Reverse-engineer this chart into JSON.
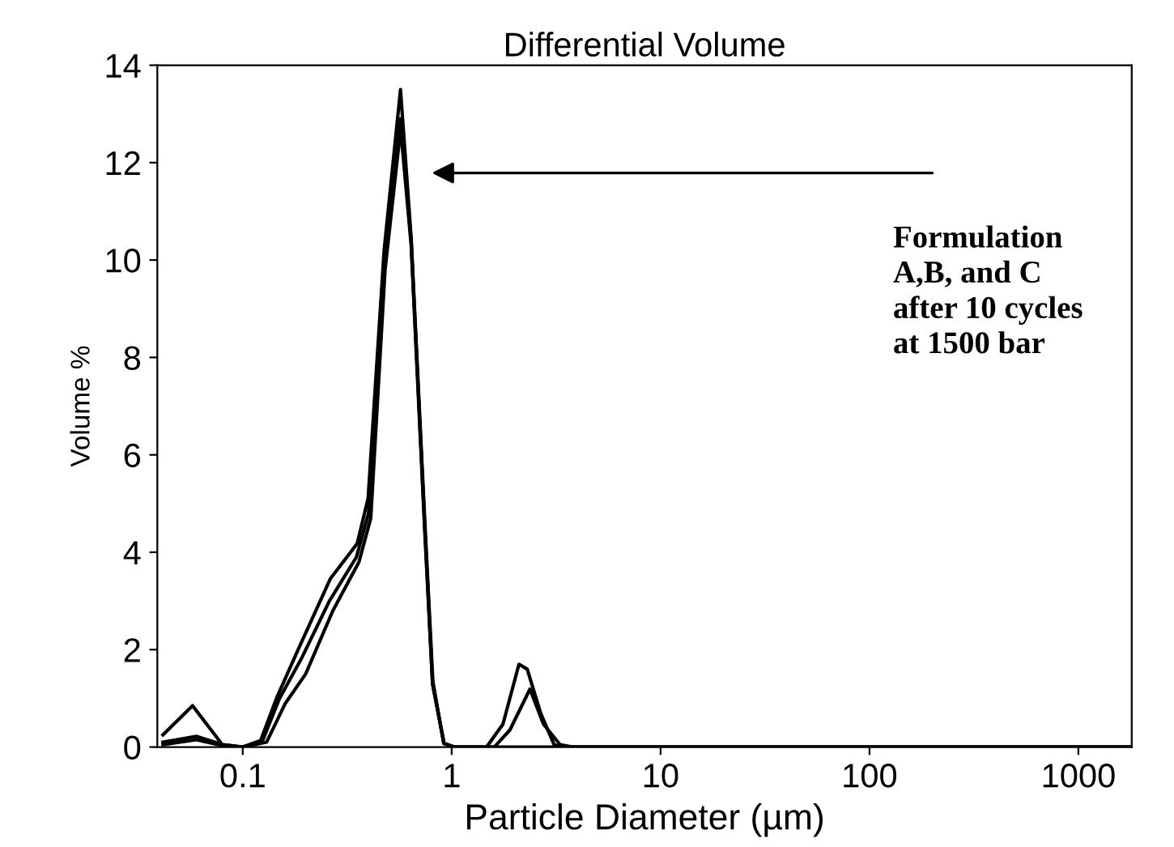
{
  "chart_data": {
    "type": "line",
    "title": "Differential Volume",
    "xlabel": "Particle Diameter (µm)",
    "ylabel": "Volume %",
    "log": "x",
    "xlim": [
      0.039,
      1800
    ],
    "xticks": [
      0.1,
      1,
      10,
      100,
      1000
    ],
    "ylim": [
      0,
      14
    ],
    "yticks": [
      0,
      2,
      4,
      6,
      8,
      10,
      12,
      14
    ],
    "grid": false,
    "legend": false,
    "marker": "none",
    "line_style": "solid",
    "series": [
      {
        "color": "#000000",
        "x": [
          0.0415,
          0.0575,
          0.0798,
          0.1,
          0.121,
          0.145,
          0.184,
          0.263,
          0.353,
          0.398,
          0.475,
          0.569,
          0.64,
          0.743,
          0.813,
          0.915,
          1.03,
          1.47,
          1.76,
          2.1,
          2.3,
          2.67,
          3.1,
          3.6,
          1800
        ],
        "values": [
          0.25,
          0.85,
          0.05,
          0,
          0.1,
          1.0,
          2.0,
          3.46,
          4.18,
          5.1,
          10.2,
          13.5,
          10.45,
          4.68,
          1.35,
          0.08,
          0,
          0,
          0.47,
          1.7,
          1.6,
          0.69,
          0.04,
          0,
          0
        ]
      },
      {
        "color": "#000000",
        "x": [
          0.0415,
          0.06,
          0.08,
          0.1,
          0.125,
          0.15,
          0.19,
          0.26,
          0.35,
          0.4,
          0.48,
          0.57,
          0.64,
          0.74,
          0.81,
          0.92,
          1.03,
          1.6,
          1.9,
          2.37,
          2.75,
          3.3,
          3.8,
          1800
        ],
        "values": [
          0.1,
          0.22,
          0.05,
          0,
          0.15,
          1.0,
          1.8,
          3.0,
          3.9,
          4.8,
          10.0,
          12.9,
          10.4,
          4.7,
          1.3,
          0.07,
          0,
          0,
          0.35,
          1.19,
          0.47,
          0.05,
          0,
          0
        ]
      },
      {
        "color": "#000000",
        "x": [
          0.0415,
          0.06,
          0.08,
          0.1,
          0.13,
          0.16,
          0.2,
          0.27,
          0.36,
          0.41,
          0.48,
          0.57,
          0.64,
          0.74,
          0.81,
          0.92,
          1.03,
          1800
        ],
        "values": [
          0.05,
          0.15,
          0.03,
          0,
          0.1,
          0.9,
          1.5,
          2.8,
          3.8,
          4.7,
          9.8,
          12.7,
          10.3,
          4.6,
          1.3,
          0.07,
          0,
          0
        ]
      }
    ],
    "annotations": [
      "Formulation\nA,B, and C\nafter 10 cycles\nat 1500 bar"
    ]
  }
}
